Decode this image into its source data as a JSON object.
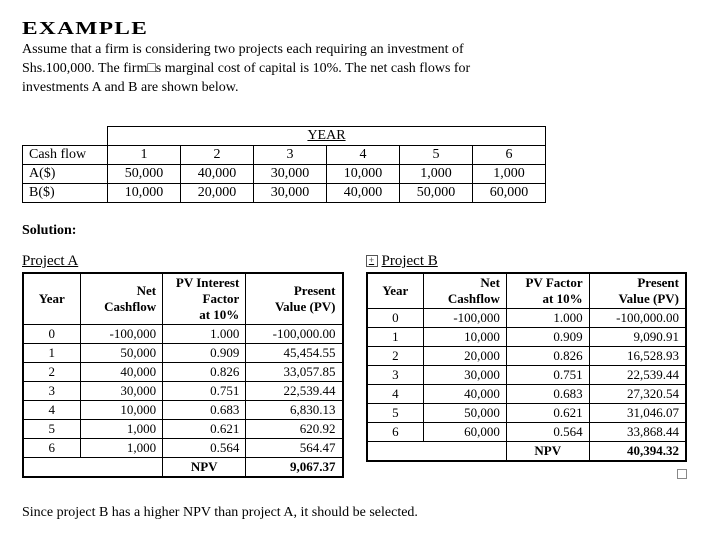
{
  "heading": "EXAMPLE",
  "intro_lines": [
    "Assume that a firm is considering two projects each requiring an investment of",
    "Shs.100,000. The firm□s marginal cost of capital is 10%.  The net cash flows for",
    "investments A and B are shown below."
  ],
  "year_table": {
    "header": "YEAR",
    "row_label": "Cash flow",
    "years": [
      "1",
      "2",
      "3",
      "4",
      "5",
      "6"
    ],
    "rowA_label": "A($)",
    "rowA": [
      "50,000",
      "40,000",
      "30,000",
      "10,000",
      "1,000",
      "1,000"
    ],
    "rowB_label": "B($)",
    "rowB": [
      "10,000",
      "20,000",
      "30,000",
      "40,000",
      "50,000",
      "60,000"
    ]
  },
  "solution_label": "Solution:",
  "projectA": {
    "title": "Project A",
    "cols": [
      "Year",
      "Net Cashflow",
      "PV Interest Factor at 10%",
      "Present Value (PV)"
    ],
    "rows": [
      [
        "0",
        "-100,000",
        "1.000",
        "-100,000.00"
      ],
      [
        "1",
        "50,000",
        "0.909",
        "45,454.55"
      ],
      [
        "2",
        "40,000",
        "0.826",
        "33,057.85"
      ],
      [
        "3",
        "30,000",
        "0.751",
        "22,539.44"
      ],
      [
        "4",
        "10,000",
        "0.683",
        "6,830.13"
      ],
      [
        "5",
        "1,000",
        "0.621",
        "620.92"
      ],
      [
        "6",
        "1,000",
        "0.564",
        "564.47"
      ]
    ],
    "npv_label": "NPV",
    "npv_value": "9,067.37"
  },
  "projectB": {
    "title": "Project B",
    "cols": [
      "Year",
      "Net Cashflow",
      "PV Factor at 10%",
      "Present Value (PV)"
    ],
    "rows": [
      [
        "0",
        "-100,000",
        "1.000",
        "-100,000.00"
      ],
      [
        "1",
        "10,000",
        "0.909",
        "9,090.91"
      ],
      [
        "2",
        "20,000",
        "0.826",
        "16,528.93"
      ],
      [
        "3",
        "30,000",
        "0.751",
        "22,539.44"
      ],
      [
        "4",
        "40,000",
        "0.683",
        "27,320.54"
      ],
      [
        "5",
        "50,000",
        "0.621",
        "31,046.07"
      ],
      [
        "6",
        "60,000",
        "0.564",
        "33,868.44"
      ]
    ],
    "npv_label": "NPV",
    "npv_value": "40,394.32"
  },
  "conclusion": "Since project B has a higher NPV than project A, it should be selected."
}
